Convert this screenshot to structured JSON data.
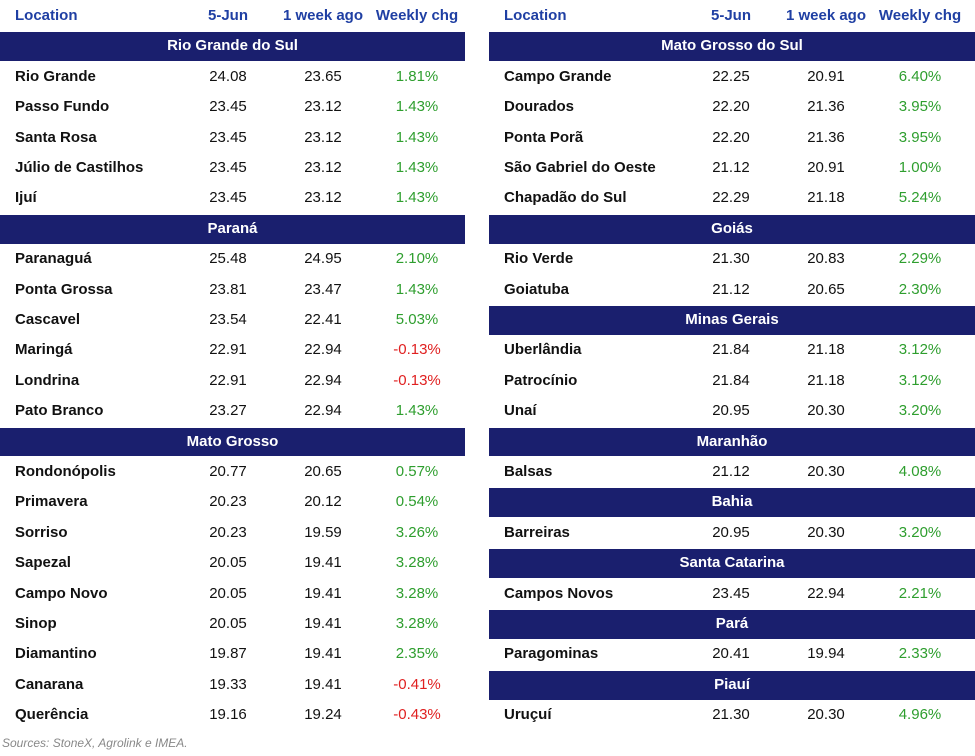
{
  "tables": [
    {
      "columns": [
        "Location",
        "5-Jun",
        "1 week ago",
        "Weekly chg"
      ],
      "sections": [
        {
          "name": "Rio Grande do Sul",
          "rows": [
            [
              "Rio Grande",
              "24.08",
              "23.65",
              "1.81%"
            ],
            [
              "Passo Fundo",
              "23.45",
              "23.12",
              "1.43%"
            ],
            [
              "Santa Rosa",
              "23.45",
              "23.12",
              "1.43%"
            ],
            [
              "Júlio de Castilhos",
              "23.45",
              "23.12",
              "1.43%"
            ],
            [
              "Ijuí",
              "23.45",
              "23.12",
              "1.43%"
            ]
          ]
        },
        {
          "name": "Paraná",
          "rows": [
            [
              "Paranaguá",
              "25.48",
              "24.95",
              "2.10%"
            ],
            [
              "Ponta Grossa",
              "23.81",
              "23.47",
              "1.43%"
            ],
            [
              "Cascavel",
              "23.54",
              "22.41",
              "5.03%"
            ],
            [
              "Maringá",
              "22.91",
              "22.94",
              "-0.13%"
            ],
            [
              "Londrina",
              "22.91",
              "22.94",
              "-0.13%"
            ],
            [
              "Pato Branco",
              "23.27",
              "22.94",
              "1.43%"
            ]
          ]
        },
        {
          "name": "Mato Grosso",
          "rows": [
            [
              "Rondonópolis",
              "20.77",
              "20.65",
              "0.57%"
            ],
            [
              "Primavera",
              "20.23",
              "20.12",
              "0.54%"
            ],
            [
              "Sorriso",
              "20.23",
              "19.59",
              "3.26%"
            ],
            [
              "Sapezal",
              "20.05",
              "19.41",
              "3.28%"
            ],
            [
              "Campo Novo",
              "20.05",
              "19.41",
              "3.28%"
            ],
            [
              "Sinop",
              "20.05",
              "19.41",
              "3.28%"
            ],
            [
              "Diamantino",
              "19.87",
              "19.41",
              "2.35%"
            ],
            [
              "Canarana",
              "19.33",
              "19.41",
              "-0.41%"
            ],
            [
              "Querência",
              "19.16",
              "19.24",
              "-0.43%"
            ]
          ]
        }
      ]
    },
    {
      "columns": [
        "Location",
        "5-Jun",
        "1 week ago",
        "Weekly chg"
      ],
      "sections": [
        {
          "name": "Mato Grosso do Sul",
          "rows": [
            [
              "Campo Grande",
              "22.25",
              "20.91",
              "6.40%"
            ],
            [
              "Dourados",
              "22.20",
              "21.36",
              "3.95%"
            ],
            [
              "Ponta Porã",
              "22.20",
              "21.36",
              "3.95%"
            ],
            [
              "São Gabriel do Oeste",
              "21.12",
              "20.91",
              "1.00%"
            ],
            [
              "Chapadão do Sul",
              "22.29",
              "21.18",
              "5.24%"
            ]
          ]
        },
        {
          "name": "Goiás",
          "rows": [
            [
              "Rio Verde",
              "21.30",
              "20.83",
              "2.29%"
            ],
            [
              "Goiatuba",
              "21.12",
              "20.65",
              "2.30%"
            ]
          ]
        },
        {
          "name": "Minas Gerais",
          "rows": [
            [
              "Uberlândia",
              "21.84",
              "21.18",
              "3.12%"
            ],
            [
              "Patrocínio",
              "21.84",
              "21.18",
              "3.12%"
            ],
            [
              "Unaí",
              "20.95",
              "20.30",
              "3.20%"
            ]
          ]
        },
        {
          "name": "Maranhão",
          "rows": [
            [
              "Balsas",
              "21.12",
              "20.30",
              "4.08%"
            ]
          ]
        },
        {
          "name": "Bahia",
          "rows": [
            [
              "Barreiras",
              "20.95",
              "20.30",
              "3.20%"
            ]
          ]
        },
        {
          "name": "Santa Catarina",
          "rows": [
            [
              "Campos Novos",
              "23.45",
              "22.94",
              "2.21%"
            ]
          ]
        },
        {
          "name": "Pará",
          "rows": [
            [
              "Paragominas",
              "20.41",
              "19.94",
              "2.33%"
            ]
          ]
        },
        {
          "name": "Piauí",
          "rows": [
            [
              "Uruçuí",
              "21.30",
              "20.30",
              "4.96%"
            ]
          ]
        }
      ]
    }
  ],
  "source": "Sources: StoneX, Agrolink e IMEA."
}
